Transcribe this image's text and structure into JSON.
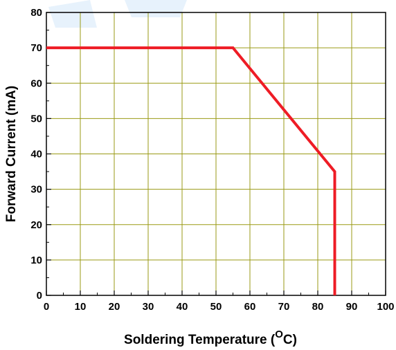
{
  "chart_data": {
    "type": "line",
    "xlabel": "Soldering Temperature (",
    "xlabel_unit_sup": "O",
    "xlabel_unit": "C)",
    "ylabel": "Forward Current (mA)",
    "xlim": [
      0,
      100
    ],
    "ylim": [
      0,
      80
    ],
    "x_ticks": [
      0,
      10,
      20,
      30,
      40,
      50,
      60,
      70,
      80,
      90,
      100
    ],
    "y_ticks": [
      0,
      10,
      20,
      30,
      40,
      50,
      60,
      70,
      80
    ],
    "x_tick_labels": [
      "0",
      "10",
      "20",
      "30",
      "40",
      "50",
      "60",
      "70",
      "80",
      "90",
      "100"
    ],
    "y_tick_labels": [
      "0",
      "10",
      "20",
      "30",
      "40",
      "50",
      "60",
      "70",
      "80"
    ],
    "grid": true,
    "grid_color": "#9a9a14",
    "series": [
      {
        "color": "#ee1c25",
        "points": [
          [
            0,
            70
          ],
          [
            55,
            70
          ],
          [
            85,
            35
          ],
          [
            85,
            0
          ]
        ]
      }
    ]
  }
}
